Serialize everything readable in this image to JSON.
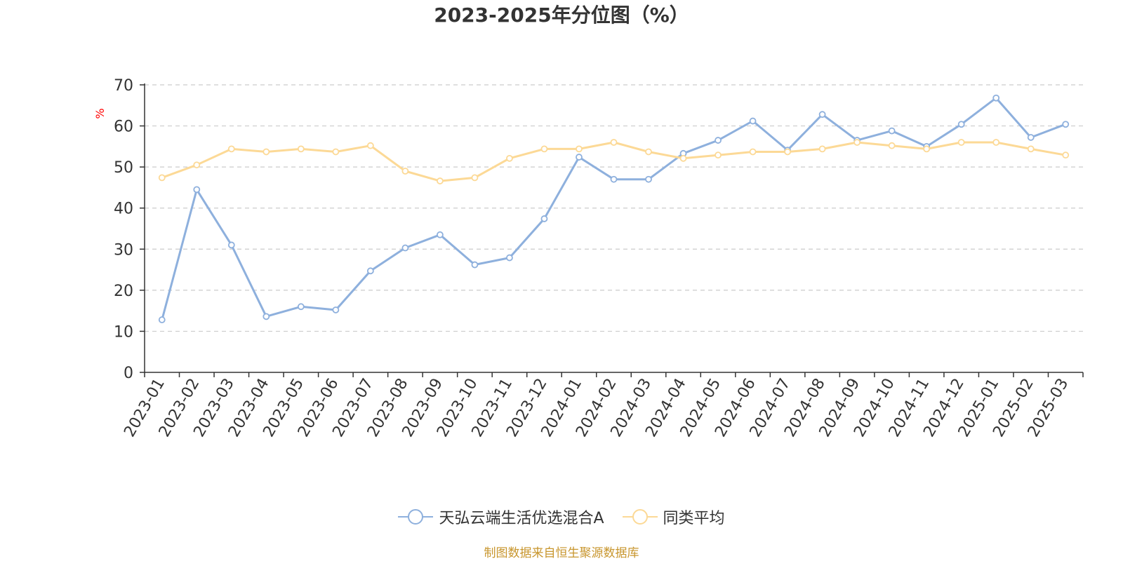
{
  "chart_data": {
    "type": "line",
    "title": "2023-2025年分位图（%）",
    "ylabel": "%",
    "xlabel": "",
    "ylim": [
      0,
      70
    ],
    "yticks": [
      0,
      10,
      20,
      30,
      40,
      50,
      60,
      70
    ],
    "grid": true,
    "legend_position": "bottom",
    "categories": [
      "2023-01",
      "2023-02",
      "2023-03",
      "2023-04",
      "2023-05",
      "2023-06",
      "2023-07",
      "2023-08",
      "2023-09",
      "2023-10",
      "2023-11",
      "2023-12",
      "2024-01",
      "2024-02",
      "2024-03",
      "2024-04",
      "2024-05",
      "2024-06",
      "2024-07",
      "2024-08",
      "2024-09",
      "2024-10",
      "2024-11",
      "2024-12",
      "2025-01",
      "2025-02",
      "2025-03"
    ],
    "series": [
      {
        "name": "天弘云端生活优选混合A",
        "color": "#8eb0dd",
        "values": [
          12.8,
          44.5,
          31.0,
          13.6,
          16.0,
          15.2,
          24.7,
          30.3,
          33.5,
          26.2,
          27.9,
          37.4,
          52.4,
          47.0,
          47.0,
          53.3,
          56.5,
          61.2,
          54.1,
          62.8,
          56.5,
          58.8,
          55.0,
          60.4,
          66.8,
          57.2,
          60.4
        ]
      },
      {
        "name": "同类平均",
        "color": "#fcd996",
        "values": [
          47.4,
          50.5,
          54.4,
          53.7,
          54.4,
          53.7,
          55.2,
          49.0,
          46.6,
          47.4,
          52.1,
          54.4,
          54.4,
          56.0,
          53.7,
          52.1,
          52.9,
          53.7,
          53.7,
          54.4,
          56.0,
          55.2,
          54.4,
          56.0,
          56.0,
          54.4,
          52.9
        ]
      }
    ]
  },
  "footer": {
    "source": "制图数据来自恒生聚源数据库"
  }
}
